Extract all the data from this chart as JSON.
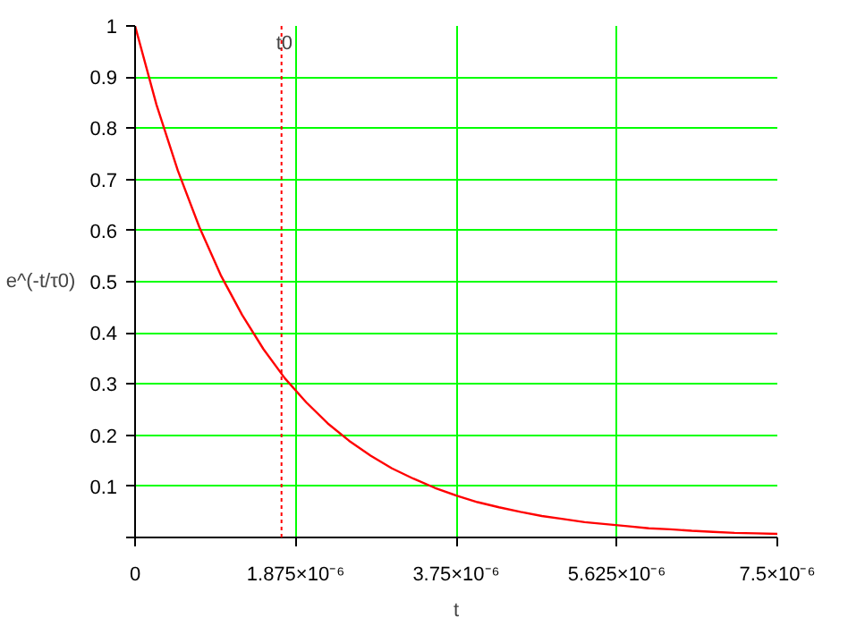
{
  "chart_data": {
    "type": "line",
    "xlabel": "t",
    "ylabel": "e^(-t/τ0)",
    "x": [
      0,
      2.5e-07,
      5e-07,
      7.5e-07,
      1e-06,
      1.25e-06,
      1.5e-06,
      1.75e-06,
      2e-06,
      2.25e-06,
      2.5e-06,
      2.75e-06,
      3e-06,
      3.25e-06,
      3.5e-06,
      3.75e-06,
      4e-06,
      4.25e-06,
      4.5e-06,
      4.75e-06,
      5e-06,
      5.25e-06,
      5.5e-06,
      5.75e-06,
      6e-06,
      6.25e-06,
      6.5e-06,
      6.75e-06,
      7e-06,
      7.25e-06,
      7.5e-06
    ],
    "series": [
      {
        "color": "#ff0000",
        "values": [
          1,
          0.846,
          0.717,
          0.607,
          0.513,
          0.435,
          0.368,
          0.311,
          0.264,
          0.223,
          0.189,
          0.16,
          0.135,
          0.115,
          0.097,
          0.082,
          0.069,
          0.059,
          0.05,
          0.042,
          0.036,
          0.03,
          0.026,
          0.022,
          0.018,
          0.016,
          0.013,
          0.011,
          0.009,
          0.008,
          0.007
        ]
      }
    ],
    "xlim": [
      0,
      7.5e-06
    ],
    "ylim": [
      0,
      1
    ],
    "xticks": [
      0,
      {
        "value": 1.875e-06,
        "label": "1.875×10⁻⁶"
      },
      {
        "value": 3.75e-06,
        "label": "3.75×10⁻⁶"
      },
      {
        "value": 5.625e-06,
        "label": "5.625×10⁻⁶"
      },
      {
        "value": 7.5e-06,
        "label": "7.5×10⁻⁶"
      }
    ],
    "yticks": [
      {
        "value": 0,
        "label": null
      },
      0.1,
      0.2,
      0.3,
      0.4,
      0.5,
      0.6,
      0.7,
      0.8,
      0.9,
      1
    ],
    "ref_lines": [
      {
        "axis": "x",
        "value": 1.71e-06,
        "label": "t0",
        "color": "#ff0000",
        "line_style": "dotted"
      }
    ],
    "grid": true,
    "line_style": "solid"
  }
}
